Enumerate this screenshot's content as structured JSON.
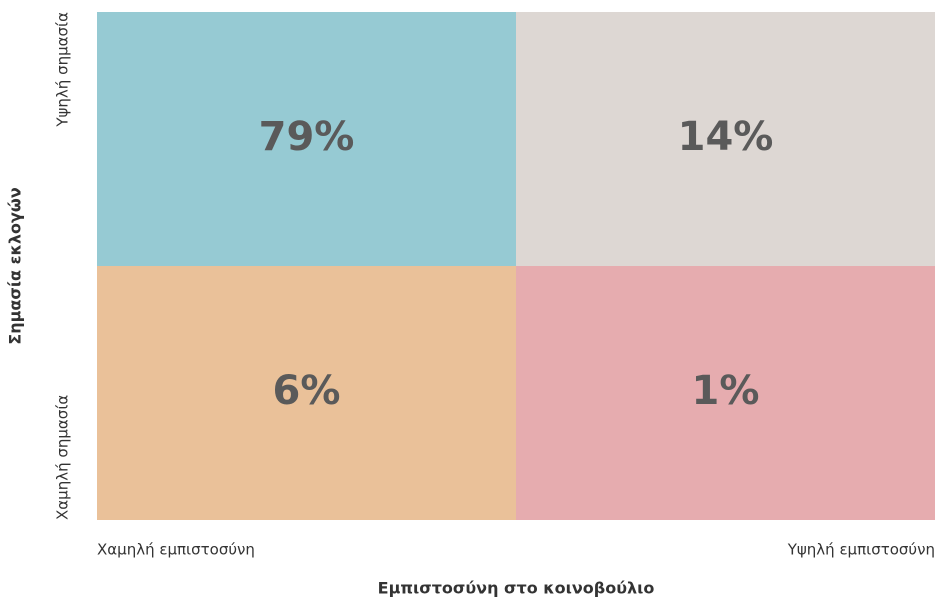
{
  "chart_data": {
    "type": "matrix",
    "x_label": "Εμπιστοσύνη στο κοινοβούλιο",
    "y_label": "Σημασία εκλογών",
    "x_categories": [
      "Χαμηλή εμπιστοσύνη",
      "Υψηλή εμπιστοσύνη"
    ],
    "y_categories": [
      "Υψηλή σημασία",
      "Χαμηλή σημασία"
    ],
    "values": [
      [
        79,
        14
      ],
      [
        6,
        1
      ]
    ],
    "value_labels": [
      [
        "79%",
        "14%"
      ],
      [
        "6%",
        "1%"
      ]
    ],
    "colors": [
      [
        "#96cad3",
        "#ddd7d3"
      ],
      [
        "#eac199",
        "#e6acaf"
      ]
    ]
  }
}
